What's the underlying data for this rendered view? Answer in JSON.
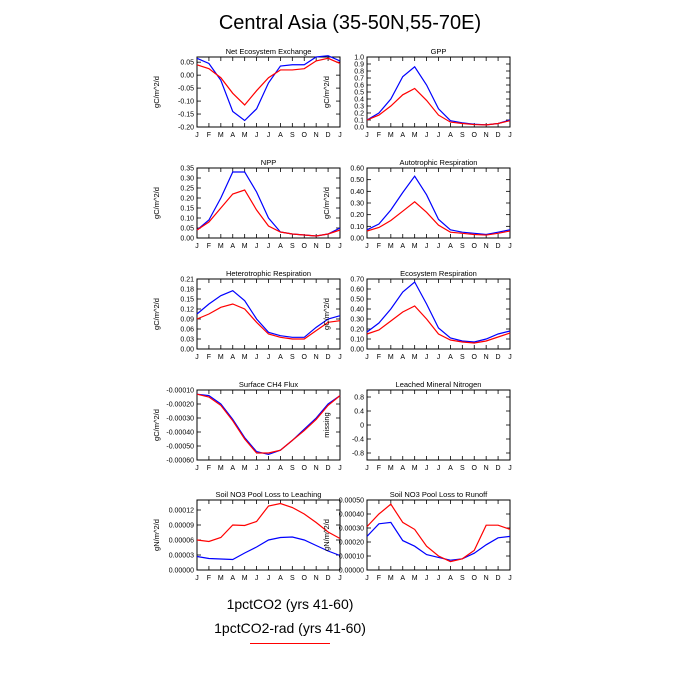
{
  "title": "Central Asia (35-50N,55-70E)",
  "colors": {
    "run1": "#0000ff",
    "run2": "#ff0000"
  },
  "legend": {
    "run1_label": "1pctCO2 (yrs 41-60)",
    "run2_label": "1pctCO2-rad (yrs 41-60)"
  },
  "chart_data": [
    {
      "type": "line",
      "title": "Net Ecosystem Exchange",
      "ylabel": "gC/m^2/d",
      "categories": [
        "J",
        "F",
        "M",
        "A",
        "M",
        "J",
        "J",
        "A",
        "S",
        "O",
        "N",
        "D",
        "J"
      ],
      "ylim": [
        -0.2,
        0.07
      ],
      "yticks": [
        "0.05",
        "0.00",
        "-0.05",
        "-0.10",
        "-0.15",
        "-0.20"
      ],
      "ytick_values": [
        0.05,
        0.0,
        -0.05,
        -0.1,
        -0.15,
        -0.2
      ],
      "series": [
        {
          "values": [
            0.065,
            0.045,
            -0.02,
            -0.14,
            -0.175,
            -0.13,
            -0.03,
            0.035,
            0.04,
            0.04,
            0.07,
            0.075,
            0.055
          ]
        },
        {
          "values": [
            0.04,
            0.025,
            -0.01,
            -0.07,
            -0.115,
            -0.06,
            -0.01,
            0.02,
            0.02,
            0.025,
            0.055,
            0.065,
            0.045
          ]
        }
      ]
    },
    {
      "type": "line",
      "title": "GPP",
      "ylabel": "gC/m^2/d",
      "categories": [
        "J",
        "F",
        "M",
        "A",
        "M",
        "J",
        "J",
        "A",
        "S",
        "O",
        "N",
        "D",
        "J"
      ],
      "ylim": [
        0.0,
        1.0
      ],
      "yticks": [
        "1.0",
        "0.9",
        "0.8",
        "0.7",
        "0.6",
        "0.5",
        "0.4",
        "0.3",
        "0.2",
        "0.1",
        "0.0"
      ],
      "ytick_values": [
        1.0,
        0.9,
        0.8,
        0.7,
        0.6,
        0.5,
        0.4,
        0.3,
        0.2,
        0.1,
        0.0
      ],
      "series": [
        {
          "values": [
            0.1,
            0.2,
            0.4,
            0.72,
            0.86,
            0.6,
            0.26,
            0.09,
            0.06,
            0.04,
            0.03,
            0.05,
            0.1
          ]
        },
        {
          "values": [
            0.1,
            0.17,
            0.3,
            0.46,
            0.55,
            0.38,
            0.17,
            0.07,
            0.05,
            0.035,
            0.03,
            0.05,
            0.09
          ]
        }
      ]
    },
    {
      "type": "line",
      "title": "NPP",
      "ylabel": "gC/m^2/d",
      "categories": [
        "J",
        "F",
        "M",
        "A",
        "M",
        "J",
        "J",
        "A",
        "S",
        "O",
        "N",
        "D",
        "J"
      ],
      "ylim": [
        0.0,
        0.35
      ],
      "yticks": [
        "0.35",
        "0.30",
        "0.25",
        "0.20",
        "0.15",
        "0.10",
        "0.05",
        "0.00"
      ],
      "ytick_values": [
        0.35,
        0.3,
        0.25,
        0.2,
        0.15,
        0.1,
        0.05,
        0.0
      ],
      "series": [
        {
          "values": [
            0.04,
            0.09,
            0.2,
            0.33,
            0.33,
            0.23,
            0.1,
            0.03,
            0.02,
            0.015,
            0.01,
            0.02,
            0.05
          ]
        },
        {
          "values": [
            0.04,
            0.08,
            0.15,
            0.22,
            0.24,
            0.14,
            0.06,
            0.03,
            0.02,
            0.015,
            0.01,
            0.02,
            0.04
          ]
        }
      ]
    },
    {
      "type": "line",
      "title": "Autotrophic Respiration",
      "ylabel": "gC/m^2/d",
      "categories": [
        "J",
        "F",
        "M",
        "A",
        "M",
        "J",
        "J",
        "A",
        "S",
        "O",
        "N",
        "D",
        "J"
      ],
      "ylim": [
        0.0,
        0.6
      ],
      "yticks": [
        "0.60",
        "0.50",
        "0.40",
        "0.30",
        "0.20",
        "0.10",
        "0.00"
      ],
      "ytick_values": [
        0.6,
        0.5,
        0.4,
        0.3,
        0.2,
        0.1,
        0.0
      ],
      "series": [
        {
          "values": [
            0.07,
            0.12,
            0.24,
            0.39,
            0.53,
            0.37,
            0.16,
            0.07,
            0.05,
            0.04,
            0.03,
            0.05,
            0.07
          ]
        },
        {
          "values": [
            0.06,
            0.09,
            0.15,
            0.23,
            0.31,
            0.22,
            0.11,
            0.05,
            0.04,
            0.03,
            0.025,
            0.04,
            0.06
          ]
        }
      ]
    },
    {
      "type": "line",
      "title": "Heterotrophic Respiration",
      "ylabel": "gC/m^2/d",
      "categories": [
        "J",
        "F",
        "M",
        "A",
        "M",
        "J",
        "J",
        "A",
        "S",
        "O",
        "N",
        "D",
        "J"
      ],
      "ylim": [
        0.0,
        0.21
      ],
      "yticks": [
        "0.21",
        "0.18",
        "0.15",
        "0.12",
        "0.09",
        "0.06",
        "0.03",
        "0.00"
      ],
      "ytick_values": [
        0.21,
        0.18,
        0.15,
        0.12,
        0.09,
        0.06,
        0.03,
        0.0
      ],
      "series": [
        {
          "values": [
            0.105,
            0.135,
            0.16,
            0.175,
            0.145,
            0.09,
            0.05,
            0.04,
            0.035,
            0.035,
            0.065,
            0.09,
            0.1
          ]
        },
        {
          "values": [
            0.09,
            0.105,
            0.125,
            0.135,
            0.12,
            0.08,
            0.045,
            0.035,
            0.03,
            0.03,
            0.055,
            0.08,
            0.085
          ]
        }
      ]
    },
    {
      "type": "line",
      "title": "Ecosystem Respiration",
      "ylabel": "gC/m^2/d",
      "categories": [
        "J",
        "F",
        "M",
        "A",
        "M",
        "J",
        "J",
        "A",
        "S",
        "O",
        "N",
        "D",
        "J"
      ],
      "ylim": [
        0.0,
        0.7
      ],
      "yticks": [
        "0.70",
        "0.60",
        "0.50",
        "0.40",
        "0.30",
        "0.20",
        "0.10",
        "0.00"
      ],
      "ytick_values": [
        0.7,
        0.6,
        0.5,
        0.4,
        0.3,
        0.2,
        0.1,
        0.0
      ],
      "series": [
        {
          "values": [
            0.17,
            0.26,
            0.4,
            0.57,
            0.67,
            0.45,
            0.21,
            0.11,
            0.08,
            0.07,
            0.1,
            0.15,
            0.18
          ]
        },
        {
          "values": [
            0.15,
            0.19,
            0.28,
            0.37,
            0.43,
            0.3,
            0.15,
            0.09,
            0.07,
            0.06,
            0.08,
            0.12,
            0.16
          ]
        }
      ]
    },
    {
      "type": "line",
      "title": "Surface CH4 Flux",
      "ylabel": "gC/m^2/d",
      "categories": [
        "J",
        "F",
        "M",
        "A",
        "M",
        "J",
        "J",
        "A",
        "S",
        "O",
        "N",
        "D",
        "J"
      ],
      "ylim": [
        -0.0006,
        -0.0001
      ],
      "yticks": [
        "-0.00010",
        "-0.00020",
        "-0.00030",
        "-0.00040",
        "-0.00050",
        "-0.00060"
      ],
      "ytick_values": [
        -0.0001,
        -0.0002,
        -0.0003,
        -0.0004,
        -0.0005,
        -0.0006
      ],
      "series": [
        {
          "values": [
            -0.00013,
            -0.00014,
            -0.0002,
            -0.00031,
            -0.00044,
            -0.00054,
            -0.00056,
            -0.00053,
            -0.00046,
            -0.00038,
            -0.0003,
            -0.0002,
            -0.00014
          ]
        },
        {
          "values": [
            -0.00013,
            -0.00015,
            -0.00021,
            -0.00032,
            -0.00045,
            -0.00055,
            -0.00055,
            -0.00053,
            -0.00046,
            -0.00039,
            -0.00031,
            -0.00021,
            -0.00014
          ]
        }
      ]
    },
    {
      "type": "line",
      "title": "Leached Mineral Nitrogen",
      "ylabel": "missing",
      "categories": [
        "J",
        "F",
        "M",
        "A",
        "M",
        "J",
        "J",
        "A",
        "S",
        "O",
        "N",
        "D",
        "J"
      ],
      "ylim": [
        -1.0,
        1.0
      ],
      "yticks": [
        "0.8",
        "0.4",
        "0",
        "-0.4",
        "-0.8"
      ],
      "ytick_values": [
        0.8,
        0.4,
        0.0,
        -0.4,
        -0.8
      ],
      "series": []
    },
    {
      "type": "line",
      "title": "Soil NO3 Pool Loss to Leaching",
      "ylabel": "gN/m^2/d",
      "categories": [
        "J",
        "F",
        "M",
        "A",
        "M",
        "J",
        "J",
        "A",
        "S",
        "O",
        "N",
        "D",
        "J"
      ],
      "ylim": [
        0.0,
        0.00014
      ],
      "yticks": [
        "0.00012",
        "0.00009",
        "0.00006",
        "0.00003",
        "0.00000"
      ],
      "ytick_values": [
        0.00012,
        9e-05,
        6e-05,
        3e-05,
        0.0
      ],
      "series": [
        {
          "values": [
            2.7e-05,
            2.3e-05,
            2.2e-05,
            2.1e-05,
            3.4e-05,
            4.6e-05,
            6e-05,
            6.5e-05,
            6.6e-05,
            6e-05,
            4.9e-05,
            3.8e-05,
            2.9e-05
          ]
        },
        {
          "values": [
            6e-05,
            5.7e-05,
            6.5e-05,
            9e-05,
            8.9e-05,
            9.7e-05,
            0.000128,
            0.000133,
            0.000125,
            0.000112,
            9.5e-05,
            7.6e-05,
            6.3e-05
          ]
        }
      ]
    },
    {
      "type": "line",
      "title": "Soil NO3 Pool Loss to Runoff",
      "ylabel": "gN/m^2/d",
      "categories": [
        "J",
        "F",
        "M",
        "A",
        "M",
        "J",
        "J",
        "A",
        "S",
        "O",
        "N",
        "D",
        "J"
      ],
      "ylim": [
        0.0,
        0.0005
      ],
      "yticks": [
        "0.00050",
        "0.00040",
        "0.00030",
        "0.00020",
        "0.00010",
        "0.00000"
      ],
      "ytick_values": [
        0.0005,
        0.0004,
        0.0003,
        0.0002,
        0.0001,
        0.0
      ],
      "series": [
        {
          "values": [
            0.00024,
            0.00033,
            0.00034,
            0.00021,
            0.00017,
            0.00011,
            9e-05,
            7e-05,
            8e-05,
            0.00012,
            0.00018,
            0.00023,
            0.00024
          ]
        },
        {
          "values": [
            0.00031,
            0.0004,
            0.00047,
            0.00034,
            0.00029,
            0.00017,
            0.0001,
            6e-05,
            8e-05,
            0.00014,
            0.00032,
            0.00032,
            0.00029
          ]
        }
      ]
    }
  ]
}
